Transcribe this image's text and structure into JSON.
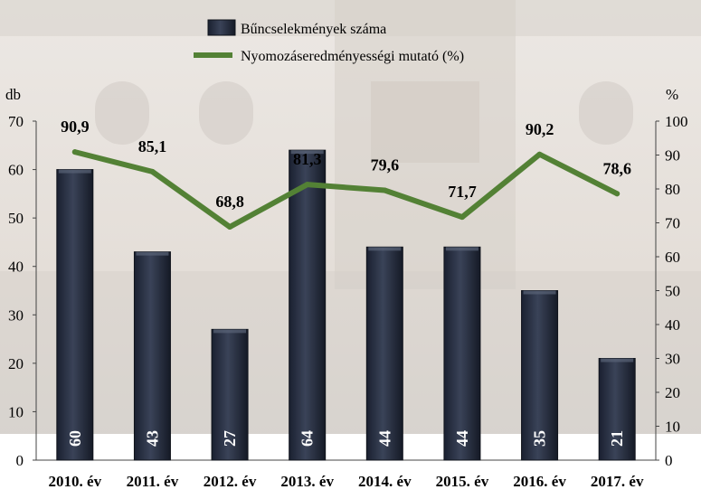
{
  "chart_data": {
    "type": "bar",
    "categories": [
      "2010. év",
      "2011. év",
      "2012. év",
      "2013. év",
      "2014. év",
      "2015. év",
      "2016. év",
      "2017. év"
    ],
    "series": [
      {
        "name": "Bűncselekmények száma",
        "chart_type": "bar",
        "axis": "left",
        "values": [
          60,
          43,
          27,
          64,
          44,
          44,
          35,
          21
        ],
        "color": "#2a3142"
      },
      {
        "name": "Nyomozáseredményességi mutató (%)",
        "chart_type": "line",
        "axis": "right",
        "values": [
          90.9,
          85.1,
          68.8,
          81.3,
          79.6,
          71.7,
          90.2,
          78.6
        ],
        "labels": [
          "90,9",
          "85,1",
          "68,8",
          "81,3",
          "79,6",
          "71,7",
          "90,2",
          "78,6"
        ],
        "color": "#538135"
      }
    ],
    "y_left": {
      "label": "db",
      "ylim": [
        0,
        70
      ],
      "ticks": [
        0,
        10,
        20,
        30,
        40,
        50,
        60,
        70
      ]
    },
    "y_right": {
      "label": "%",
      "ylim": [
        0,
        100
      ],
      "ticks": [
        0,
        10,
        20,
        30,
        40,
        50,
        60,
        70,
        80,
        90,
        100
      ]
    },
    "legend_position": "top-center",
    "grid": false
  }
}
